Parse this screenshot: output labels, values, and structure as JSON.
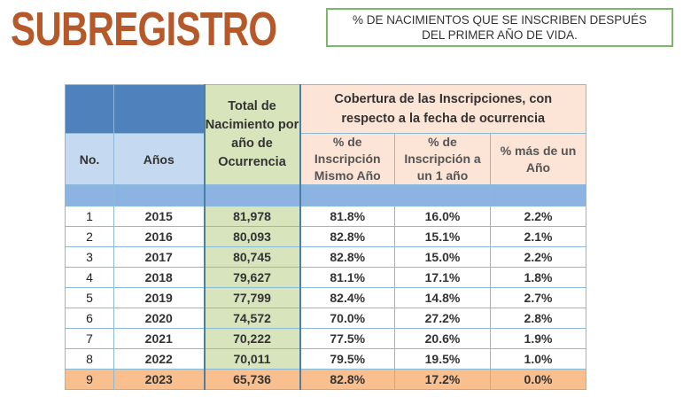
{
  "title": "SUBREGISTRO",
  "note": {
    "line1": "% DE NACIMIENTOS QUE SE INSCRIBEN DESPUÉS",
    "line2": "DEL PRIMER AÑO DE VIDA."
  },
  "table": {
    "headers": {
      "no": "No.",
      "years": "Años",
      "total": "Total de Nacimiento por año de Ocurrencia",
      "coverage": "Cobertura de las Inscripciones, con respecto a la fecha de ocurrencia",
      "same_year": "% de Inscripción Mismo Año",
      "one_year": "% de Inscripción a un 1 año",
      "more_year": "% más de un Año"
    },
    "rows": [
      [
        "1",
        "2015",
        "81,978",
        "81.8%",
        "16.0%",
        "2.2%"
      ],
      [
        "2",
        "2016",
        "80,093",
        "82.8%",
        "15.1%",
        "2.1%"
      ],
      [
        "3",
        "2017",
        "80,745",
        "82.8%",
        "15.0%",
        "2.2%"
      ],
      [
        "4",
        "2018",
        "79,627",
        "81.1%",
        "17.1%",
        "1.8%"
      ],
      [
        "5",
        "2019",
        "77,799",
        "82.4%",
        "14.8%",
        "2.7%"
      ],
      [
        "6",
        "2020",
        "74,572",
        "70.0%",
        "27.2%",
        "2.8%"
      ],
      [
        "7",
        "2021",
        "70,222",
        "77.5%",
        "20.6%",
        "1.9%"
      ],
      [
        "8",
        "2022",
        "70,011",
        "79.5%",
        "19.5%",
        "1.0%"
      ],
      [
        "9",
        "2023",
        "65,736",
        "82.8%",
        "17.2%",
        "0.0%"
      ]
    ]
  },
  "colors": {
    "title": "#b5582a",
    "header_dark": "#4f81bd",
    "highlight_row": "#fabf8f",
    "total_col": "#d7e4bc"
  }
}
